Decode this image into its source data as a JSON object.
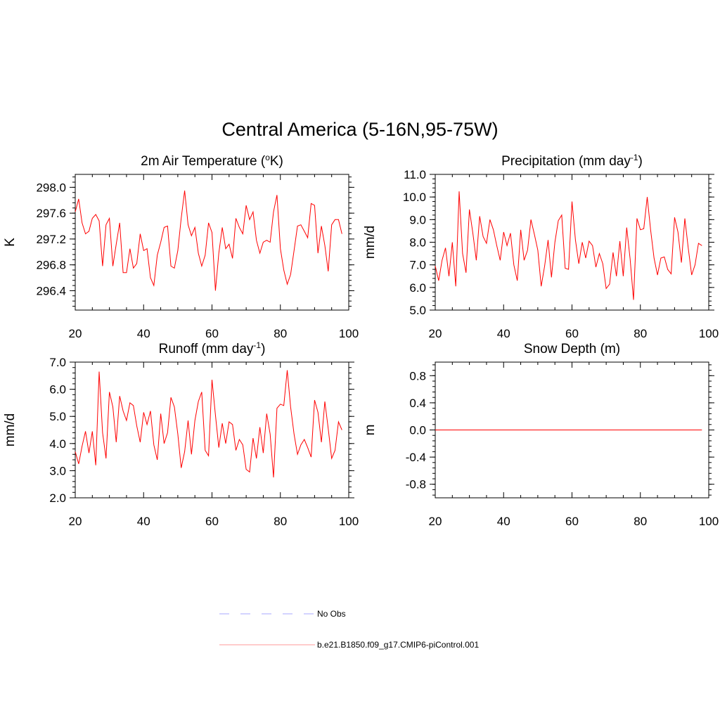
{
  "figure": {
    "title": "Central America (5-16N,95-75W)"
  },
  "legend": [
    {
      "label": "No Obs",
      "color": "#aaaaff",
      "dash": true
    },
    {
      "label": "b.e21.B1850.f09_g17.CMIP6-piControl.001",
      "color": "#ff9999",
      "dash": false
    }
  ],
  "chart_data": [
    {
      "id": "temp",
      "type": "line",
      "title_main": "2m Air Temperature (",
      "title_sup": "o",
      "title_end": "K)",
      "ylabel": "K",
      "xlim": [
        20,
        100
      ],
      "ylim": [
        296.1,
        298.2
      ],
      "xticks": [
        20,
        40,
        60,
        80,
        100
      ],
      "yticks": [
        296.4,
        296.8,
        297.2,
        297.6,
        298.0
      ],
      "ytick_labels": [
        "296.4",
        "296.8",
        "297.2",
        "297.6",
        "298.0"
      ],
      "line_color": "#ff0000",
      "x_start": 20,
      "values": [
        297.62,
        297.82,
        297.45,
        297.28,
        297.32,
        297.52,
        297.58,
        297.48,
        296.78,
        297.42,
        297.52,
        296.78,
        297.12,
        297.45,
        296.68,
        296.68,
        297.05,
        296.75,
        296.82,
        297.28,
        297.02,
        297.05,
        296.6,
        296.48,
        296.95,
        297.15,
        297.38,
        297.4,
        296.78,
        296.75,
        297.02,
        297.52,
        297.95,
        297.42,
        297.25,
        297.38,
        296.98,
        296.78,
        296.95,
        297.45,
        297.3,
        296.4,
        296.98,
        297.38,
        297.05,
        297.12,
        296.9,
        297.52,
        297.38,
        297.28,
        297.72,
        297.5,
        297.62,
        297.18,
        296.98,
        297.15,
        297.18,
        297.15,
        297.62,
        297.88,
        297.05,
        296.72,
        296.5,
        296.65,
        297.02,
        297.4,
        297.42,
        297.32,
        297.22,
        297.75,
        297.72,
        296.98,
        297.4,
        297.1,
        296.7,
        297.42,
        297.5,
        297.5,
        297.28
      ]
    },
    {
      "id": "precip",
      "type": "line",
      "title_main": "Precipitation (mm day",
      "title_sup": "-1",
      "title_end": ")",
      "ylabel": "mm/d",
      "xlim": [
        20,
        100
      ],
      "ylim": [
        5.0,
        11.0
      ],
      "xticks": [
        20,
        40,
        60,
        80,
        100
      ],
      "yticks": [
        5.0,
        6.0,
        7.0,
        8.0,
        9.0,
        10.0,
        11.0
      ],
      "ytick_labels": [
        "5.0",
        "6.0",
        "7.0",
        "8.0",
        "9.0",
        "10.0",
        "11.0"
      ],
      "line_color": "#ff0000",
      "x_start": 20,
      "values": [
        6.95,
        6.3,
        7.2,
        7.75,
        6.5,
        8.0,
        6.05,
        10.25,
        7.5,
        6.65,
        9.45,
        8.4,
        7.2,
        9.15,
        8.25,
        7.95,
        9.0,
        8.55,
        7.85,
        7.2,
        8.45,
        7.85,
        8.4,
        7.0,
        6.3,
        8.55,
        7.2,
        7.65,
        9.0,
        8.35,
        7.65,
        6.05,
        6.95,
        8.1,
        6.45,
        8.0,
        8.95,
        9.2,
        6.85,
        6.8,
        9.8,
        8.1,
        7.05,
        8.0,
        7.3,
        8.05,
        7.85,
        6.9,
        7.5,
        7.05,
        5.95,
        6.15,
        7.55,
        6.5,
        8.05,
        6.5,
        8.65,
        7.25,
        5.45,
        9.05,
        8.55,
        8.6,
        10.0,
        8.55,
        7.3,
        6.55,
        7.3,
        7.35,
        6.8,
        6.6,
        9.1,
        8.45,
        7.1,
        9.05,
        7.75,
        6.55,
        7.0,
        7.95,
        7.85
      ]
    },
    {
      "id": "runoff",
      "type": "line",
      "title_main": "Runoff (mm day",
      "title_sup": "-1",
      "title_end": ")",
      "ylabel": "mm/d",
      "xlim": [
        20,
        100
      ],
      "ylim": [
        2.0,
        7.0
      ],
      "xticks": [
        20,
        40,
        60,
        80,
        100
      ],
      "yticks": [
        2.0,
        3.0,
        4.0,
        5.0,
        6.0,
        7.0
      ],
      "ytick_labels": [
        "2.0",
        "3.0",
        "4.0",
        "5.0",
        "6.0",
        "7.0"
      ],
      "line_color": "#ff0000",
      "x_start": 20,
      "values": [
        3.7,
        3.25,
        3.9,
        4.45,
        3.65,
        4.45,
        3.2,
        6.65,
        4.4,
        3.45,
        5.9,
        5.35,
        4.05,
        5.75,
        5.2,
        4.85,
        5.5,
        5.4,
        4.65,
        4.05,
        5.15,
        4.7,
        5.2,
        3.95,
        3.4,
        5.1,
        4.0,
        4.4,
        5.7,
        5.35,
        4.35,
        3.1,
        3.7,
        4.85,
        3.6,
        4.85,
        5.55,
        5.9,
        3.75,
        3.55,
        6.35,
        5.05,
        3.85,
        4.75,
        4.0,
        4.8,
        4.7,
        3.75,
        4.15,
        3.95,
        3.05,
        2.95,
        4.2,
        3.45,
        4.6,
        3.65,
        5.1,
        4.35,
        2.75,
        5.3,
        5.45,
        5.4,
        6.7,
        5.35,
        4.35,
        3.6,
        3.95,
        4.15,
        3.85,
        3.5,
        5.6,
        5.15,
        4.05,
        5.55,
        4.55,
        3.45,
        3.75,
        4.8,
        4.5
      ]
    },
    {
      "id": "snow",
      "type": "line",
      "title_main": "Snow Depth (m)",
      "title_sup": "",
      "title_end": "",
      "ylabel": "m",
      "xlim": [
        20,
        100
      ],
      "ylim": [
        -1.0,
        1.0
      ],
      "xticks": [
        20,
        40,
        60,
        80,
        100
      ],
      "yticks": [
        -0.8,
        -0.4,
        0.0,
        0.4,
        0.8
      ],
      "ytick_labels": [
        "-0.8",
        "-0.4",
        "0.0",
        "0.4",
        "0.8"
      ],
      "line_color": "#ff0000",
      "x_start": 20,
      "values": [
        0,
        0,
        0,
        0,
        0,
        0,
        0,
        0,
        0,
        0,
        0,
        0,
        0,
        0,
        0,
        0,
        0,
        0,
        0,
        0,
        0,
        0,
        0,
        0,
        0,
        0,
        0,
        0,
        0,
        0,
        0,
        0,
        0,
        0,
        0,
        0,
        0,
        0,
        0,
        0,
        0,
        0,
        0,
        0,
        0,
        0,
        0,
        0,
        0,
        0,
        0,
        0,
        0,
        0,
        0,
        0,
        0,
        0,
        0,
        0,
        0,
        0,
        0,
        0,
        0,
        0,
        0,
        0,
        0,
        0,
        0,
        0,
        0,
        0,
        0,
        0,
        0,
        0,
        0
      ]
    }
  ]
}
